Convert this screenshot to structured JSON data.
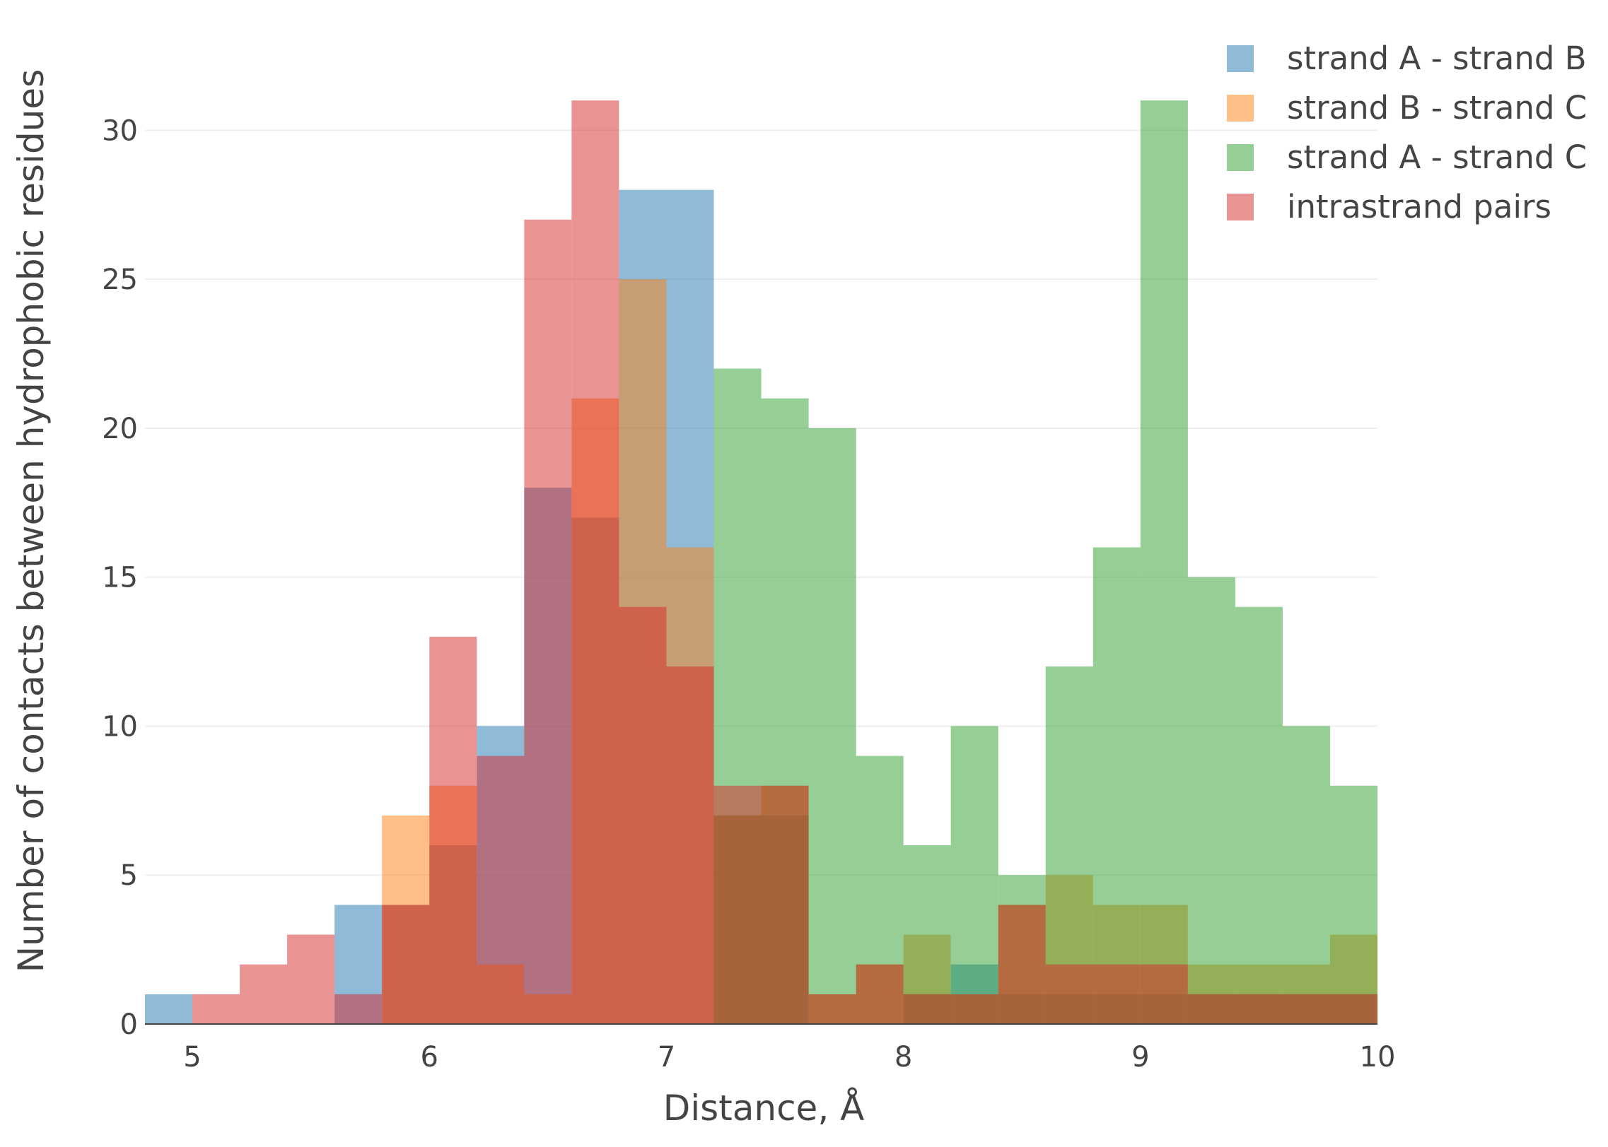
{
  "chart_data": {
    "type": "histogram",
    "barmode": "overlay",
    "bin_width": 0.2,
    "xlabel": "Distance, Å",
    "ylabel": "Number of contacts between hydrophobic residues",
    "xlim": [
      4.8,
      10
    ],
    "ylim": [
      0,
      32
    ],
    "xticks": [
      5,
      6,
      7,
      8,
      9,
      10
    ],
    "yticks": [
      0,
      5,
      10,
      15,
      20,
      25,
      30
    ],
    "grid": true,
    "legend_position": "top-right",
    "series": [
      {
        "name": "strand A - strand B",
        "color": "#1f77b4",
        "bins": [
          [
            4.8,
            1
          ],
          [
            5.0,
            0
          ],
          [
            5.2,
            0
          ],
          [
            5.4,
            0
          ],
          [
            5.6,
            4
          ],
          [
            5.8,
            4
          ],
          [
            6.0,
            6
          ],
          [
            6.2,
            10
          ],
          [
            6.4,
            18
          ],
          [
            6.6,
            17
          ],
          [
            6.8,
            28
          ],
          [
            7.0,
            28
          ],
          [
            7.2,
            7
          ],
          [
            7.4,
            7
          ],
          [
            7.6,
            0
          ],
          [
            7.8,
            0
          ],
          [
            8.0,
            1
          ],
          [
            8.2,
            2
          ],
          [
            8.4,
            1
          ],
          [
            8.6,
            1
          ],
          [
            8.8,
            1
          ],
          [
            9.0,
            1
          ],
          [
            9.2,
            1
          ],
          [
            9.4,
            1
          ],
          [
            9.6,
            1
          ],
          [
            9.8,
            1
          ]
        ]
      },
      {
        "name": "strand B - strand C",
        "color": "#ff7f0e",
        "bins": [
          [
            4.8,
            0
          ],
          [
            5.0,
            0
          ],
          [
            5.2,
            0
          ],
          [
            5.4,
            0
          ],
          [
            5.6,
            0
          ],
          [
            5.8,
            7
          ],
          [
            6.0,
            8
          ],
          [
            6.2,
            2
          ],
          [
            6.4,
            1
          ],
          [
            6.6,
            21
          ],
          [
            6.8,
            25
          ],
          [
            7.0,
            16
          ],
          [
            7.2,
            7
          ],
          [
            7.4,
            8
          ],
          [
            7.6,
            1
          ],
          [
            7.8,
            2
          ],
          [
            8.0,
            3
          ],
          [
            8.2,
            1
          ],
          [
            8.4,
            4
          ],
          [
            8.6,
            5
          ],
          [
            8.8,
            4
          ],
          [
            9.0,
            4
          ],
          [
            9.2,
            2
          ],
          [
            9.4,
            2
          ],
          [
            9.6,
            2
          ],
          [
            9.8,
            3
          ]
        ]
      },
      {
        "name": "strand A - strand C",
        "color": "#2ca02c",
        "bins": [
          [
            4.8,
            0
          ],
          [
            5.0,
            0
          ],
          [
            5.2,
            0
          ],
          [
            5.4,
            0
          ],
          [
            5.6,
            0
          ],
          [
            5.8,
            0
          ],
          [
            6.0,
            0
          ],
          [
            6.2,
            0
          ],
          [
            6.4,
            0
          ],
          [
            6.6,
            0
          ],
          [
            6.8,
            0
          ],
          [
            7.0,
            0
          ],
          [
            7.2,
            22
          ],
          [
            7.4,
            21
          ],
          [
            7.6,
            20
          ],
          [
            7.8,
            9
          ],
          [
            8.0,
            6
          ],
          [
            8.2,
            10
          ],
          [
            8.4,
            5
          ],
          [
            8.6,
            12
          ],
          [
            8.8,
            16
          ],
          [
            9.0,
            31
          ],
          [
            9.2,
            15
          ],
          [
            9.4,
            14
          ],
          [
            9.6,
            10
          ],
          [
            9.8,
            8
          ]
        ]
      },
      {
        "name": "intrastrand pairs",
        "color": "#d62728",
        "bins": [
          [
            4.8,
            0
          ],
          [
            5.0,
            1
          ],
          [
            5.2,
            2
          ],
          [
            5.4,
            3
          ],
          [
            5.6,
            1
          ],
          [
            5.8,
            4
          ],
          [
            6.0,
            13
          ],
          [
            6.2,
            9
          ],
          [
            6.4,
            27
          ],
          [
            6.6,
            31
          ],
          [
            6.8,
            14
          ],
          [
            7.0,
            12
          ],
          [
            7.2,
            8
          ],
          [
            7.4,
            8
          ],
          [
            7.6,
            1
          ],
          [
            7.8,
            2
          ],
          [
            8.0,
            1
          ],
          [
            8.2,
            1
          ],
          [
            8.4,
            4
          ],
          [
            8.6,
            2
          ],
          [
            8.8,
            2
          ],
          [
            9.0,
            2
          ],
          [
            9.2,
            1
          ],
          [
            9.4,
            1
          ],
          [
            9.6,
            1
          ],
          [
            9.8,
            1
          ]
        ]
      }
    ]
  }
}
